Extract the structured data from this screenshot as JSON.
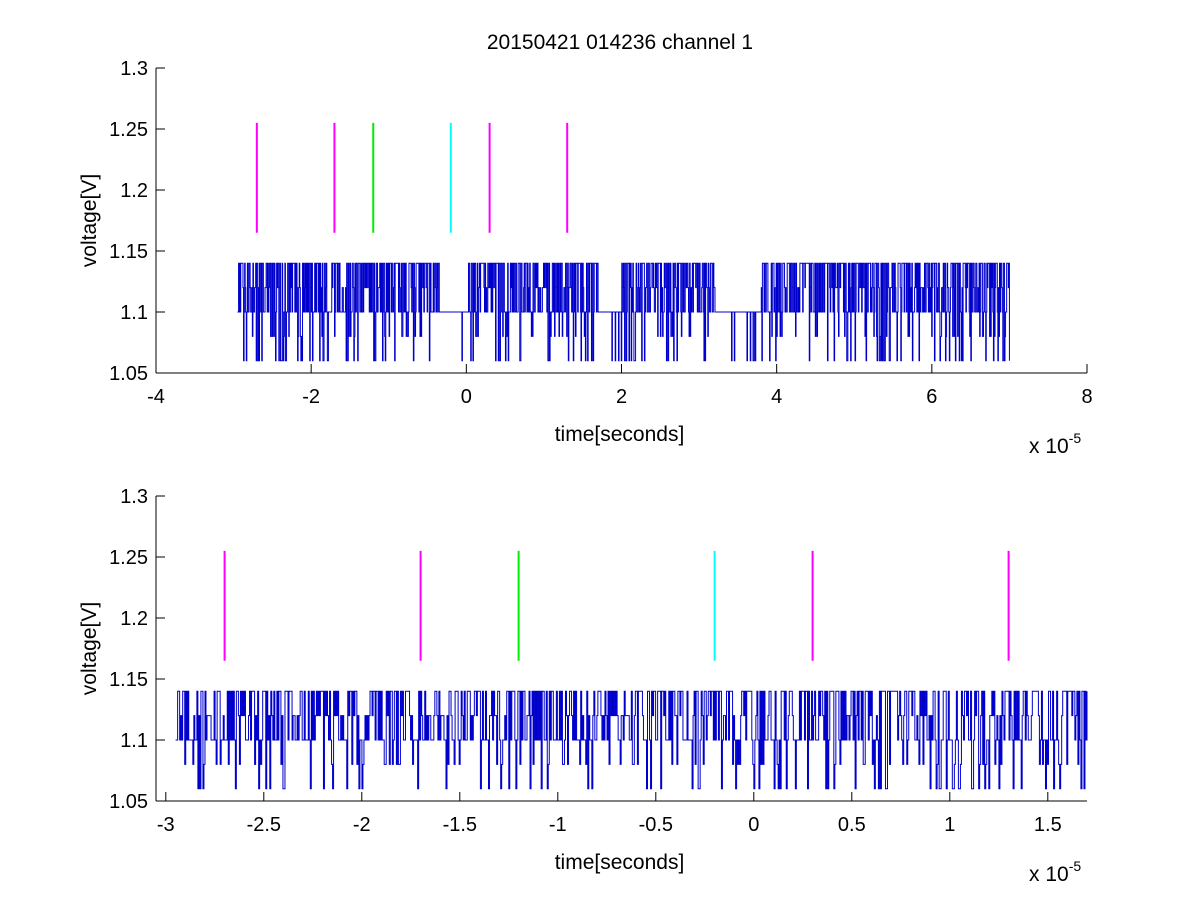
{
  "figure": {
    "title": "20150421 014236 channel 1",
    "colors": {
      "signal": "#0000cc",
      "magenta": "#ff00ff",
      "green": "#00ee00",
      "cyan": "#00ffff",
      "axis": "#000000",
      "background": "#ffffff"
    }
  },
  "chart_data": [
    {
      "type": "line",
      "title": "20150421 014236 channel 1",
      "xlabel": "time[seconds]",
      "ylabel": "voltage[V]",
      "x_exponent_label": "x 10",
      "x_exponent_power": "-5",
      "xlim": [
        -4,
        8
      ],
      "ylim": [
        1.05,
        1.3
      ],
      "xticks": [
        -4,
        -2,
        0,
        2,
        4,
        6,
        8
      ],
      "xtick_labels": [
        "-4",
        "-2",
        "0",
        "2",
        "4",
        "6",
        "8"
      ],
      "yticks": [
        1.05,
        1.1,
        1.15,
        1.2,
        1.25,
        1.3
      ],
      "ytick_labels": [
        "1.05",
        "1.1",
        "1.15",
        "1.2",
        "1.25",
        "1.3"
      ],
      "grid": false,
      "signal": {
        "x_range": [
          -2.95,
          7.0
        ],
        "levels": [
          1.06,
          1.08,
          1.1,
          1.12,
          1.14
        ],
        "baseline": 1.1,
        "color": "#0000cc",
        "gaps": [
          [
            -0.35,
            0.0
          ],
          [
            1.7,
            2.0
          ],
          [
            3.2,
            3.8
          ],
          [
            7.0,
            7.0
          ]
        ]
      },
      "markers": [
        {
          "x": -2.7,
          "y_range": [
            1.165,
            1.255
          ],
          "color": "#ff00ff"
        },
        {
          "x": -1.7,
          "y_range": [
            1.165,
            1.255
          ],
          "color": "#ff00ff"
        },
        {
          "x": -1.2,
          "y_range": [
            1.165,
            1.255
          ],
          "color": "#00ee00"
        },
        {
          "x": -0.2,
          "y_range": [
            1.165,
            1.255
          ],
          "color": "#00ffff"
        },
        {
          "x": 0.3,
          "y_range": [
            1.165,
            1.255
          ],
          "color": "#ff00ff"
        },
        {
          "x": 1.3,
          "y_range": [
            1.165,
            1.255
          ],
          "color": "#ff00ff"
        }
      ]
    },
    {
      "type": "line",
      "title": "",
      "xlabel": "time[seconds]",
      "ylabel": "voltage[V]",
      "x_exponent_label": "x 10",
      "x_exponent_power": "-5",
      "xlim": [
        -3.05,
        1.7
      ],
      "ylim": [
        1.05,
        1.3
      ],
      "xticks": [
        -3,
        -2.5,
        -2,
        -1.5,
        -1,
        -0.5,
        0,
        0.5,
        1,
        1.5
      ],
      "xtick_labels": [
        "-3",
        "-2.5",
        "-2",
        "-1.5",
        "-1",
        "-0.5",
        "0",
        "0.5",
        "1",
        "1.5"
      ],
      "yticks": [
        1.05,
        1.1,
        1.15,
        1.2,
        1.25,
        1.3
      ],
      "ytick_labels": [
        "1.05",
        "1.1",
        "1.15",
        "1.2",
        "1.25",
        "1.3"
      ],
      "grid": false,
      "signal": {
        "x_range": [
          -2.95,
          1.7
        ],
        "levels": [
          1.06,
          1.08,
          1.1,
          1.12,
          1.14
        ],
        "baseline": 1.1,
        "color": "#0000cc",
        "gaps": []
      },
      "markers": [
        {
          "x": -2.7,
          "y_range": [
            1.165,
            1.255
          ],
          "color": "#ff00ff"
        },
        {
          "x": -1.7,
          "y_range": [
            1.165,
            1.255
          ],
          "color": "#ff00ff"
        },
        {
          "x": -1.2,
          "y_range": [
            1.165,
            1.255
          ],
          "color": "#00ee00"
        },
        {
          "x": -0.2,
          "y_range": [
            1.165,
            1.255
          ],
          "color": "#00ffff"
        },
        {
          "x": 0.3,
          "y_range": [
            1.165,
            1.255
          ],
          "color": "#ff00ff"
        },
        {
          "x": 1.3,
          "y_range": [
            1.165,
            1.255
          ],
          "color": "#ff00ff"
        }
      ]
    }
  ]
}
